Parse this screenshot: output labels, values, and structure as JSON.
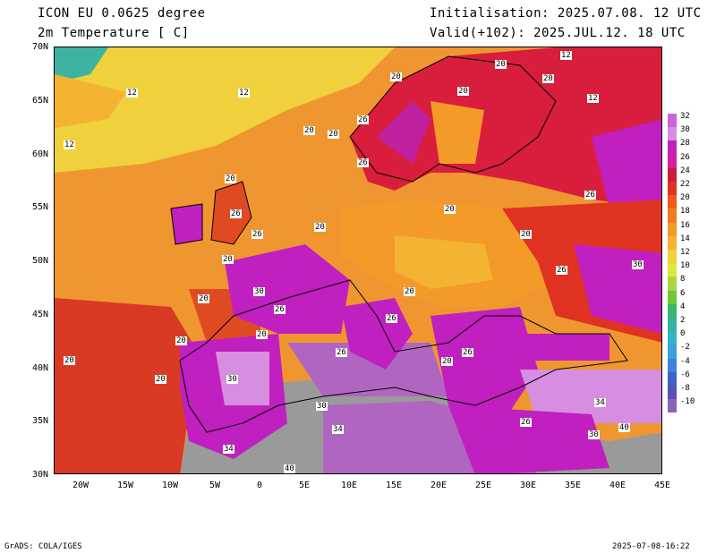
{
  "header": {
    "model": "ICON EU 0.0625 degree",
    "variable": "2m Temperature [ C]",
    "init": "Initialisation: 2025.07.08. 12 UTC",
    "valid": "Valid(+102): 2025.JUL.12. 18 UTC"
  },
  "lat_labels": [
    "70N",
    "65N",
    "60N",
    "55N",
    "50N",
    "45N",
    "40N",
    "35N",
    "30N"
  ],
  "lon_labels": [
    "20W",
    "15W",
    "10W",
    "5W",
    "0",
    "5E",
    "10E",
    "15E",
    "20E",
    "25E",
    "30E",
    "35E",
    "40E",
    "45E"
  ],
  "colorbar": {
    "labels": [
      "32",
      "30",
      "28",
      "26",
      "24",
      "22",
      "20",
      "18",
      "16",
      "14",
      "12",
      "10",
      "8",
      "6",
      "4",
      "2",
      "0",
      "-2",
      "-4",
      "-6",
      "-8",
      "-10"
    ],
    "colors": [
      "#c866d8",
      "#d88ee0",
      "#c020c0",
      "#d81ea0",
      "#c81e3c",
      "#e03220",
      "#ee5a1e",
      "#f07a22",
      "#f49a28",
      "#f4b432",
      "#f0d03c",
      "#dce83c",
      "#a8d83c",
      "#6ec83c",
      "#3cb46e",
      "#32b4a0",
      "#32b4c8",
      "#3ca0dc",
      "#3c82dc",
      "#3c64c8",
      "#5a50b4",
      "#8c64b4"
    ]
  },
  "isotherm_labels": {
    "v12": "12",
    "v20": "20",
    "v26": "26",
    "v30": "30",
    "v34": "34",
    "v40": "40"
  },
  "footer": {
    "left": "GrADS: COLA/IGES",
    "right": "2025-07-08-16:22"
  }
}
